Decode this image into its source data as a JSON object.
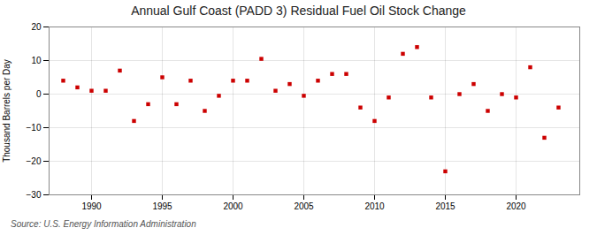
{
  "chart_data": {
    "type": "scatter",
    "title": "Annual Gulf Coast (PADD 3) Residual Fuel Oil Stock Change",
    "ylabel": "Thousand Barrels per Day",
    "annotations": [
      "Source: U.S. Energy Information Administration"
    ],
    "x": [
      1988,
      1989,
      1990,
      1991,
      1992,
      1993,
      1994,
      1995,
      1996,
      1997,
      1998,
      1999,
      2000,
      2001,
      2002,
      2003,
      2004,
      2005,
      2006,
      2007,
      2008,
      2009,
      2010,
      2011,
      2012,
      2013,
      2014,
      2015,
      2016,
      2017,
      2018,
      2019,
      2020,
      2021,
      2022,
      2023
    ],
    "values": [
      4.0,
      2.0,
      1.0,
      1.0,
      7.0,
      -8.0,
      -3.0,
      5.0,
      -3.0,
      4.0,
      -5.0,
      -0.5,
      4.0,
      4.0,
      10.5,
      1.0,
      3.0,
      -0.5,
      4.0,
      6.0,
      6.0,
      -4.0,
      -8.0,
      -1.0,
      12.0,
      14.0,
      -1.0,
      -23.0,
      0.0,
      3.0,
      -5.0,
      0.0,
      -1.0,
      8.0,
      -13.0,
      -4.0
    ],
    "color": "#cc0000",
    "marker": "square",
    "xlim": [
      1987.0,
      2024.5
    ],
    "xticks": [
      1990,
      1995,
      2000,
      2005,
      2010,
      2015,
      2020
    ],
    "ylim": [
      -30,
      20
    ],
    "yticks": [
      -30,
      -20,
      -10,
      0,
      10,
      20
    ],
    "grid": true
  }
}
